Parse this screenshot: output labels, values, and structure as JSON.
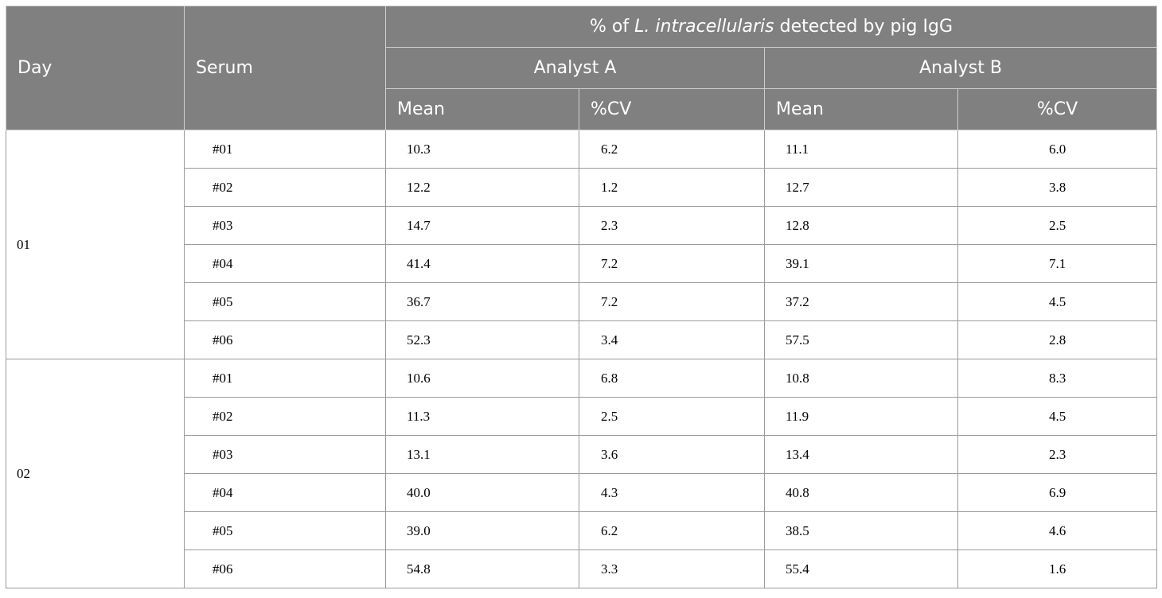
{
  "header": {
    "day": "Day",
    "serum": "Serum",
    "span_title_prefix": "% of ",
    "span_title_italic": "L. intracellularis",
    "span_title_suffix": " detected by pig IgG",
    "analyst_a": "Analyst A",
    "analyst_b": "Analyst B",
    "mean_a": "Mean",
    "cv_a": "%CV",
    "mean_b": "Mean",
    "cv_b": "%CV"
  },
  "groups": [
    {
      "day": "01",
      "rows": [
        {
          "serum": "#01",
          "a_mean": "10.3",
          "a_cv": "6.2",
          "b_mean": "11.1",
          "b_cv": "6.0"
        },
        {
          "serum": "#02",
          "a_mean": "12.2",
          "a_cv": "1.2",
          "b_mean": "12.7",
          "b_cv": "3.8"
        },
        {
          "serum": "#03",
          "a_mean": "14.7",
          "a_cv": "2.3",
          "b_mean": "12.8",
          "b_cv": "2.5"
        },
        {
          "serum": "#04",
          "a_mean": "41.4",
          "a_cv": "7.2",
          "b_mean": "39.1",
          "b_cv": "7.1"
        },
        {
          "serum": "#05",
          "a_mean": "36.7",
          "a_cv": "7.2",
          "b_mean": "37.2",
          "b_cv": "4.5"
        },
        {
          "serum": "#06",
          "a_mean": "52.3",
          "a_cv": "3.4",
          "b_mean": "57.5",
          "b_cv": "2.8"
        }
      ]
    },
    {
      "day": "02",
      "rows": [
        {
          "serum": "#01",
          "a_mean": "10.6",
          "a_cv": "6.8",
          "b_mean": "10.8",
          "b_cv": "8.3"
        },
        {
          "serum": "#02",
          "a_mean": "11.3",
          "a_cv": "2.5",
          "b_mean": "11.9",
          "b_cv": "4.5"
        },
        {
          "serum": "#03",
          "a_mean": "13.1",
          "a_cv": "3.6",
          "b_mean": "13.4",
          "b_cv": "2.3"
        },
        {
          "serum": "#04",
          "a_mean": "40.0",
          "a_cv": "4.3",
          "b_mean": "40.8",
          "b_cv": "6.9"
        },
        {
          "serum": "#05",
          "a_mean": "39.0",
          "a_cv": "6.2",
          "b_mean": "38.5",
          "b_cv": "4.6"
        },
        {
          "serum": "#06",
          "a_mean": "54.8",
          "a_cv": "3.3",
          "b_mean": "55.4",
          "b_cv": "1.6"
        }
      ]
    }
  ]
}
